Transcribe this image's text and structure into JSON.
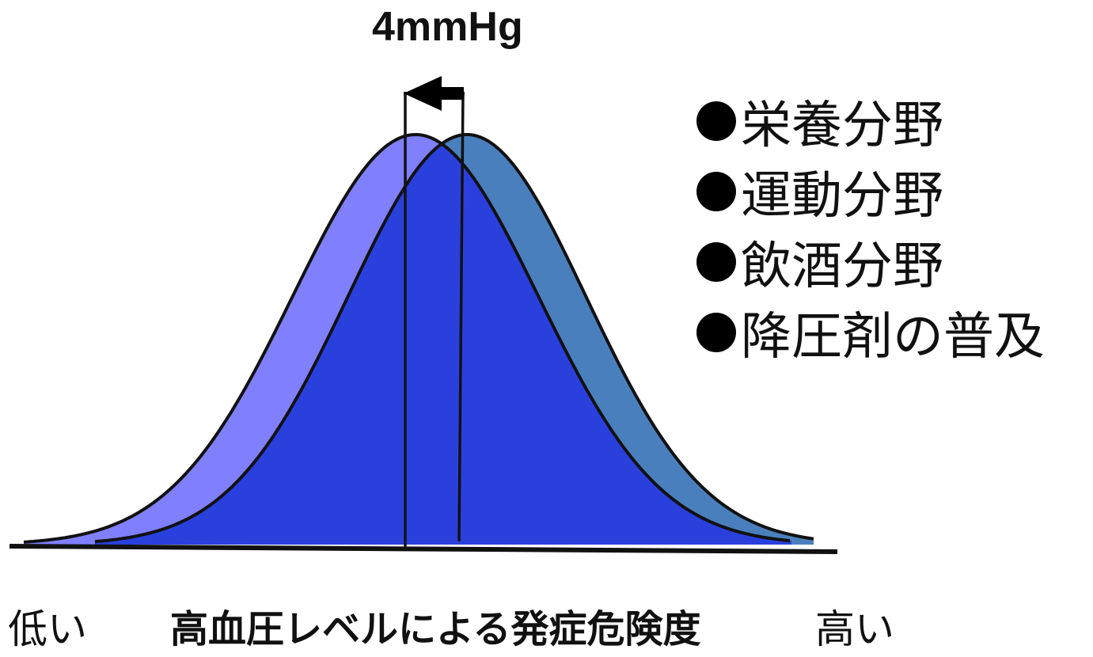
{
  "shift_label": "4mmHg",
  "legend": {
    "items": [
      {
        "label": "栄養分野"
      },
      {
        "label": "運動分野"
      },
      {
        "label": "飲酒分野"
      },
      {
        "label": "降圧剤の普及"
      }
    ]
  },
  "axis": {
    "low_label": "低い",
    "title": "高血圧レベルによる発症危険度",
    "high_label": "高い"
  },
  "colors": {
    "shifted_curve": "#8080ff",
    "original_curve": "#4a7fbd",
    "overlap": "#2a40dd",
    "outline": "#111111"
  }
}
